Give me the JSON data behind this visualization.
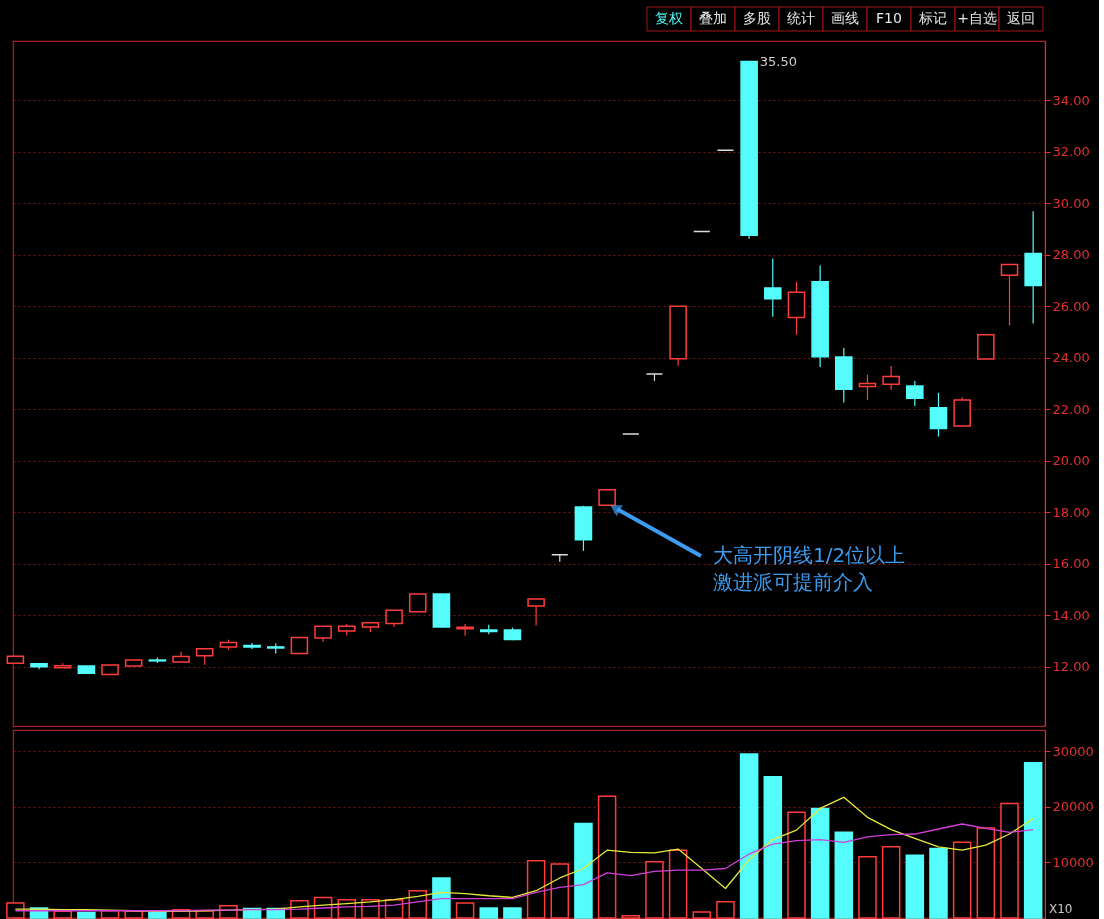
{
  "chart_data": [
    {
      "type": "candlestick",
      "categories": [
        null,
        null,
        null,
        null,
        null,
        null,
        null,
        null,
        null,
        null,
        null,
        null,
        null,
        null,
        null,
        null,
        null,
        null,
        null,
        null,
        null,
        null,
        null,
        null,
        null,
        null,
        null,
        null,
        null,
        null,
        null,
        null,
        null,
        null,
        null,
        null,
        null,
        null,
        null,
        null,
        null,
        null,
        null,
        null
      ],
      "ohlc": [
        [
          12.14,
          12.41,
          12.14,
          12.41
        ],
        [
          12.12,
          12.12,
          11.9,
          12.0
        ],
        [
          11.96,
          12.14,
          11.96,
          12.04
        ],
        [
          12.03,
          12.03,
          11.75,
          11.75
        ],
        [
          11.7,
          12.07,
          11.68,
          12.07
        ],
        [
          12.03,
          12.26,
          12.03,
          12.26
        ],
        [
          12.26,
          12.36,
          12.15,
          12.23
        ],
        [
          12.19,
          12.58,
          12.19,
          12.4
        ],
        [
          12.43,
          12.7,
          12.08,
          12.7
        ],
        [
          12.77,
          13.05,
          12.66,
          12.94
        ],
        [
          12.83,
          12.92,
          12.69,
          12.77
        ],
        [
          12.77,
          12.91,
          12.52,
          12.73
        ],
        [
          12.52,
          13.14,
          12.52,
          13.14
        ],
        [
          13.12,
          13.57,
          12.97,
          13.57
        ],
        [
          13.39,
          13.66,
          13.21,
          13.57
        ],
        [
          13.54,
          13.71,
          13.35,
          13.71
        ],
        [
          13.68,
          14.19,
          13.54,
          14.19
        ],
        [
          14.14,
          14.83,
          14.14,
          14.83
        ],
        [
          14.83,
          14.83,
          13.54,
          13.54
        ],
        [
          13.48,
          13.66,
          13.2,
          13.53
        ],
        [
          13.43,
          13.63,
          13.26,
          13.37
        ],
        [
          13.43,
          13.52,
          13.03,
          13.06
        ],
        [
          14.36,
          14.63,
          13.6,
          14.63
        ],
        [
          16.35,
          16.35,
          16.08,
          16.35
        ],
        [
          18.2,
          18.25,
          16.5,
          16.93
        ],
        [
          18.27,
          18.87,
          18.27,
          18.87
        ],
        [
          21.04,
          21.04,
          21.04,
          21.04
        ],
        [
          23.37,
          23.37,
          23.1,
          23.37
        ],
        [
          23.96,
          26.0,
          23.69,
          26.0
        ],
        [
          28.9,
          28.9,
          28.9,
          28.9
        ],
        [
          32.06,
          32.06,
          32.06,
          32.06
        ],
        [
          35.5,
          35.5,
          28.62,
          28.76
        ],
        [
          26.71,
          27.85,
          25.59,
          26.29
        ],
        [
          25.56,
          26.95,
          24.89,
          26.54
        ],
        [
          26.95,
          27.58,
          23.64,
          24.04
        ],
        [
          24.03,
          24.38,
          22.26,
          22.78
        ],
        [
          22.88,
          23.34,
          22.36,
          23.0
        ],
        [
          22.97,
          23.68,
          22.76,
          23.27
        ],
        [
          22.9,
          23.1,
          22.13,
          22.43
        ],
        [
          22.06,
          22.64,
          20.94,
          21.25
        ],
        [
          21.35,
          22.47,
          21.35,
          22.36
        ],
        [
          23.95,
          24.89,
          23.95,
          24.89
        ],
        [
          27.2,
          27.62,
          25.25,
          27.62
        ],
        [
          28.05,
          29.69,
          25.33,
          26.81
        ]
      ],
      "colors": [
        "#ff3c3c",
        "#54fcfc",
        "#ff3c3c",
        "#54fcfc",
        "#ff3c3c",
        "#ff3c3c",
        "#54fcfc",
        "#ff3c3c",
        "#ff3c3c",
        "#ff3c3c",
        "#54fcfc",
        "#54fcfc",
        "#ff3c3c",
        "#ff3c3c",
        "#ff3c3c",
        "#ff3c3c",
        "#ff3c3c",
        "#ff3c3c",
        "#54fcfc",
        "#ff3c3c",
        "#54fcfc",
        "#54fcfc",
        "#ff3c3c",
        "#dcdcdc",
        "#54fcfc",
        "#ff3c3c",
        "#dcdcdc",
        "#dcdcdc",
        "#ff3c3c",
        "#dcdcdc",
        "#dcdcdc",
        "#54fcfc",
        "#54fcfc",
        "#ff3c3c",
        "#54fcfc",
        "#54fcfc",
        "#ff3c3c",
        "#ff3c3c",
        "#54fcfc",
        "#54fcfc",
        "#ff3c3c",
        "#ff3c3c",
        "#ff3c3c",
        "#54fcfc"
      ],
      "ylim": [
        9.7,
        36.3
      ],
      "yticks": [
        {
          "value": 12,
          "label": "12.00"
        },
        {
          "value": 14,
          "label": "14.00"
        },
        {
          "value": 16,
          "label": "16.00"
        },
        {
          "value": 18,
          "label": "18.00"
        },
        {
          "value": 20,
          "label": "20.00"
        },
        {
          "value": 22,
          "label": "22.00"
        },
        {
          "value": 24,
          "label": "24.00"
        },
        {
          "value": 26,
          "label": "26.00"
        },
        {
          "value": 28,
          "label": "28.00"
        },
        {
          "value": 30,
          "label": "30.00"
        },
        {
          "value": 32,
          "label": "32.00"
        },
        {
          "value": 34,
          "label": "34.00"
        }
      ],
      "grid": "y",
      "tick_labels": "y",
      "annotations": [
        "大高开阴线1/2位以上",
        "激进派可提前介入",
        "35.50",
        "复权",
        "叠加",
        "多股",
        "统计",
        "画线",
        "F10",
        "标记",
        "+自选",
        "返回"
      ]
    },
    {
      "type": "bar",
      "categories": [
        null,
        null,
        null,
        null,
        null,
        null,
        null,
        null,
        null,
        null,
        null,
        null,
        null,
        null,
        null,
        null,
        null,
        null,
        null,
        null,
        null,
        null,
        null,
        null,
        null,
        null,
        null,
        null,
        null,
        null,
        null,
        null,
        null,
        null,
        null,
        null,
        null,
        null,
        null,
        null,
        null,
        null,
        null,
        null
      ],
      "series": [
        {
          "values": [
            2700,
            1800,
            1200,
            1000,
            1300,
            1200,
            1000,
            1500,
            1300,
            2200,
            1700,
            1700,
            3100,
            3700,
            3300,
            3300,
            3300,
            4900,
            7200,
            2700,
            1800,
            1800,
            10300,
            9700,
            17000,
            21900,
            400,
            10100,
            12200,
            1100,
            2900,
            29500,
            25400,
            19000,
            19700,
            15400,
            11000,
            12800,
            11300,
            12500,
            13600,
            16200,
            20600,
            27900
          ],
          "colors": [
            "#ff3c3c",
            "#54fcfc",
            "#ff3c3c",
            "#54fcfc",
            "#ff3c3c",
            "#ff3c3c",
            "#54fcfc",
            "#ff3c3c",
            "#ff3c3c",
            "#ff3c3c",
            "#54fcfc",
            "#54fcfc",
            "#ff3c3c",
            "#ff3c3c",
            "#ff3c3c",
            "#ff3c3c",
            "#ff3c3c",
            "#ff3c3c",
            "#54fcfc",
            "#ff3c3c",
            "#54fcfc",
            "#54fcfc",
            "#ff3c3c",
            "#ff3c3c",
            "#54fcfc",
            "#ff3c3c",
            "#ff3c3c",
            "#ff3c3c",
            "#ff3c3c",
            "#ff3c3c",
            "#ff3c3c",
            "#54fcfc",
            "#54fcfc",
            "#ff3c3c",
            "#54fcfc",
            "#54fcfc",
            "#ff3c3c",
            "#ff3c3c",
            "#54fcfc",
            "#54fcfc",
            "#ff3c3c",
            "#ff3c3c",
            "#ff3c3c",
            "#54fcfc"
          ]
        },
        {
          "type": "line",
          "color": "#e8e83c",
          "values": [
            1600,
            1600,
            1500,
            1500,
            1400,
            1300,
            1200,
            1200,
            1300,
            1400,
            1500,
            1600,
            2000,
            2300,
            2600,
            2900,
            3300,
            3900,
            4600,
            4400,
            4000,
            3700,
            4900,
            7200,
            8900,
            12200,
            11800,
            11700,
            12400,
            8900,
            5300,
            10500,
            14100,
            15800,
            19700,
            21700,
            18100,
            15900,
            14300,
            12800,
            12200,
            13100,
            15100,
            17900
          ]
        },
        {
          "type": "line",
          "color": "#d040d8",
          "values": [
            1300,
            1300,
            1300,
            1300,
            1300,
            1300,
            1300,
            1300,
            1400,
            1400,
            1500,
            1500,
            1600,
            1800,
            2000,
            2100,
            2300,
            2900,
            3500,
            3500,
            3500,
            3500,
            4600,
            5500,
            6000,
            8100,
            7600,
            8400,
            8600,
            8600,
            8900,
            11500,
            13300,
            13900,
            14100,
            13600,
            14600,
            15000,
            15100,
            16000,
            16900,
            16100,
            15400,
            15900
          ]
        }
      ],
      "ylim": [
        0,
        33800
      ],
      "yticks": [
        10000,
        20000,
        30000
      ],
      "grid": "y",
      "tick_labels": "y",
      "annotations": [
        "X10"
      ]
    }
  ]
}
